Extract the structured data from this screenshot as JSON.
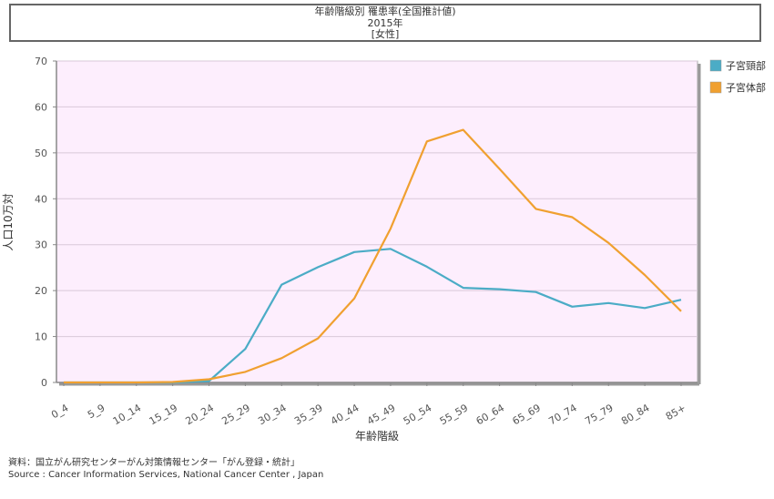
{
  "chart_data": {
    "type": "line",
    "title_lines": [
      "年齢階級別 罹患率(全国推計値)",
      "2015年",
      "[女性]"
    ],
    "xlabel": "年齢階級",
    "ylabel": "人口10万対",
    "ylim": [
      0,
      70
    ],
    "yticks": [
      0,
      10,
      20,
      30,
      40,
      50,
      60,
      70
    ],
    "categories": [
      "0_4",
      "5_9",
      "10_14",
      "15_19",
      "20_24",
      "25_29",
      "30_34",
      "35_39",
      "40_44",
      "45_49",
      "50_54",
      "55_59",
      "60_64",
      "65_69",
      "70_74",
      "75_79",
      "80_84",
      "85+"
    ],
    "series": [
      {
        "name": "子宮頸部",
        "color": "#4bacc6",
        "values": [
          0,
          0,
          0,
          0,
          0.3,
          7.3,
          21.3,
          25.1,
          28.4,
          29.1,
          25.2,
          20.6,
          20.3,
          19.7,
          16.5,
          17.3,
          16.2,
          18.0
        ]
      },
      {
        "name": "子宮体部",
        "color": "#f0a030",
        "values": [
          0,
          0,
          0,
          0.1,
          0.7,
          2.3,
          5.3,
          9.6,
          18.3,
          33.5,
          52.5,
          55.0,
          46.5,
          37.8,
          36.0,
          30.4,
          23.4,
          15.5
        ]
      }
    ],
    "grid": true,
    "plot_background": "#fdeefd",
    "legend_position": "right"
  },
  "source": {
    "line1": "資料：国立がん研究センターがん対策情報センター「がん登録・統計」",
    "line2": "Source : Cancer Information Services, National Cancer Center , Japan"
  }
}
